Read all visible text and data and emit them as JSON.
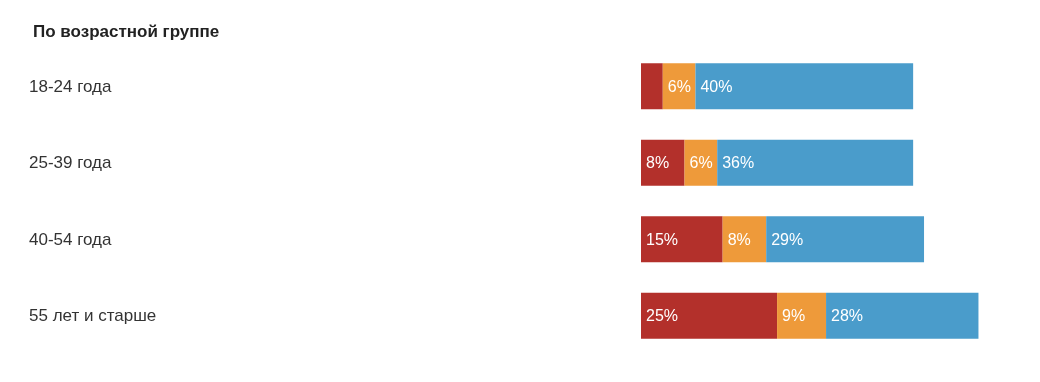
{
  "chart_data": {
    "type": "bar",
    "orientation": "horizontal",
    "stacked": true,
    "title": "По возрастной группе",
    "categories": [
      "18-24 года",
      "25-39 года",
      "40-54 года",
      "55 лет и старше"
    ],
    "series": [
      {
        "color": "#b3302b",
        "values": [
          4,
          8,
          15,
          25
        ],
        "value_labels": [
          null,
          "8%",
          "15%",
          "25%"
        ]
      },
      {
        "color": "#ee9a3a",
        "values": [
          6,
          6,
          8,
          9
        ],
        "value_labels": [
          "6%",
          "6%",
          "8%",
          "9%"
        ]
      },
      {
        "color": "#4a9ccb",
        "values": [
          40,
          36,
          29,
          28
        ],
        "value_labels": [
          "40%",
          "36%",
          "29%",
          "28%"
        ]
      }
    ]
  }
}
